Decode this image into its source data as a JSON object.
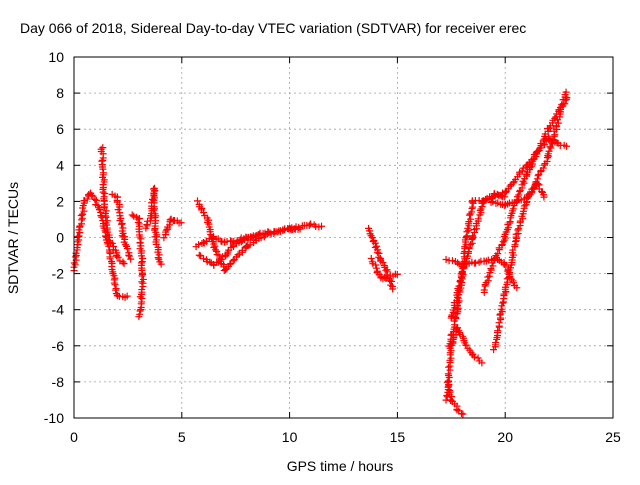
{
  "chart_data": {
    "type": "scatter",
    "title": "Day 066 of 2018, Sidereal Day-to-day VTEC variation (SDTVAR) for receiver erec",
    "xlabel": "GPS time / hours",
    "ylabel": "SDTVAR / TECUs",
    "xlim": [
      0,
      25
    ],
    "ylim": [
      -10,
      10
    ],
    "xticks": [
      0,
      5,
      10,
      15,
      20,
      25
    ],
    "yticks": [
      -10,
      -8,
      -6,
      -4,
      -2,
      0,
      2,
      4,
      6,
      8,
      10
    ],
    "grid": true,
    "marker": "plus",
    "color": "#ff0000",
    "traces": [
      [
        [
          0,
          -1.8
        ],
        [
          0.2,
          0
        ],
        [
          0.5,
          2
        ],
        [
          0.8,
          2.5
        ],
        [
          1.2,
          1.5
        ],
        [
          1.5,
          0
        ],
        [
          2,
          -3.2
        ],
        [
          2.5,
          -3.3
        ]
      ],
      [
        [
          1.3,
          5
        ],
        [
          1.4,
          2
        ],
        [
          1.6,
          0
        ],
        [
          2,
          -1
        ],
        [
          2.3,
          -1.5
        ]
      ],
      [
        [
          1.8,
          2.4
        ],
        [
          2.0,
          2.2
        ],
        [
          2.3,
          0
        ],
        [
          2.6,
          -1.2
        ]
      ],
      [
        [
          2.7,
          1.3
        ],
        [
          3,
          1
        ],
        [
          3.2,
          -2
        ],
        [
          3.05,
          -4.4
        ]
      ],
      [
        [
          3.3,
          0.5
        ],
        [
          3.6,
          1.2
        ],
        [
          3.7,
          2.7
        ],
        [
          3.8,
          0
        ],
        [
          4,
          -1.5
        ]
      ],
      [
        [
          4.2,
          0
        ],
        [
          4.5,
          1
        ],
        [
          5,
          0.8
        ]
      ],
      [
        [
          5.7,
          2
        ],
        [
          6.2,
          1
        ],
        [
          6.5,
          -0.5
        ],
        [
          7,
          -1.8
        ],
        [
          8,
          -0.5
        ],
        [
          9,
          0.2
        ],
        [
          10,
          0.5
        ],
        [
          11,
          0.7
        ],
        [
          11.5,
          0.6
        ]
      ],
      [
        [
          5.7,
          -0.5
        ],
        [
          6,
          -0.3
        ],
        [
          6.5,
          0
        ],
        [
          7,
          -0.3
        ],
        [
          8,
          0
        ],
        [
          9,
          0.3
        ],
        [
          10.5,
          0.5
        ]
      ],
      [
        [
          5.8,
          -1
        ],
        [
          6.5,
          -1.5
        ],
        [
          7,
          -1
        ],
        [
          7.5,
          -0.3
        ],
        [
          8.5,
          0.1
        ]
      ],
      [
        [
          13.7,
          0.5
        ],
        [
          14,
          -0.5
        ],
        [
          14.2,
          -1.2
        ],
        [
          14.5,
          -1.8
        ],
        [
          14.8,
          -2.9
        ]
      ],
      [
        [
          13.8,
          -1.2
        ],
        [
          14.2,
          -2.2
        ],
        [
          14.5,
          -2.3
        ],
        [
          15,
          -2
        ]
      ],
      [
        [
          17.3,
          -9
        ],
        [
          17.5,
          -6
        ],
        [
          17.8,
          -5
        ],
        [
          18.2,
          -6
        ],
        [
          18.5,
          -6.5
        ],
        [
          18.9,
          -6.9
        ]
      ],
      [
        [
          17.3,
          -8
        ],
        [
          17.5,
          -9
        ],
        [
          17.8,
          -9.5
        ],
        [
          18,
          -9.8
        ]
      ],
      [
        [
          17.4,
          -6
        ],
        [
          17.8,
          -4
        ],
        [
          18,
          -2
        ],
        [
          18.5,
          0
        ],
        [
          19,
          2
        ],
        [
          19.5,
          2.4
        ],
        [
          20,
          2.2
        ]
      ],
      [
        [
          17.5,
          -4.5
        ],
        [
          18,
          -2
        ],
        [
          18.2,
          0
        ],
        [
          18.5,
          2
        ],
        [
          19,
          2
        ],
        [
          20,
          2.5
        ],
        [
          21,
          4
        ],
        [
          22,
          5.5
        ],
        [
          22.8,
          5
        ]
      ],
      [
        [
          17.3,
          -1.2
        ],
        [
          18,
          -1.5
        ],
        [
          19,
          -1.3
        ],
        [
          19.5,
          -1.2
        ],
        [
          20,
          -1.5
        ],
        [
          20.5,
          -2.8
        ]
      ],
      [
        [
          19.5,
          -6.2
        ],
        [
          20,
          -3
        ],
        [
          20.5,
          0
        ],
        [
          21,
          2
        ],
        [
          22,
          4.5
        ],
        [
          22.8,
          8
        ]
      ],
      [
        [
          19.0,
          -3
        ],
        [
          19.5,
          -1.2
        ],
        [
          20,
          0
        ],
        [
          20.5,
          2
        ],
        [
          21,
          3.5
        ],
        [
          22,
          6
        ],
        [
          22.9,
          7.8
        ]
      ],
      [
        [
          19.3,
          2
        ],
        [
          20,
          1.8
        ],
        [
          21,
          2.2
        ],
        [
          21.5,
          3
        ],
        [
          21.8,
          2.2
        ]
      ]
    ]
  }
}
